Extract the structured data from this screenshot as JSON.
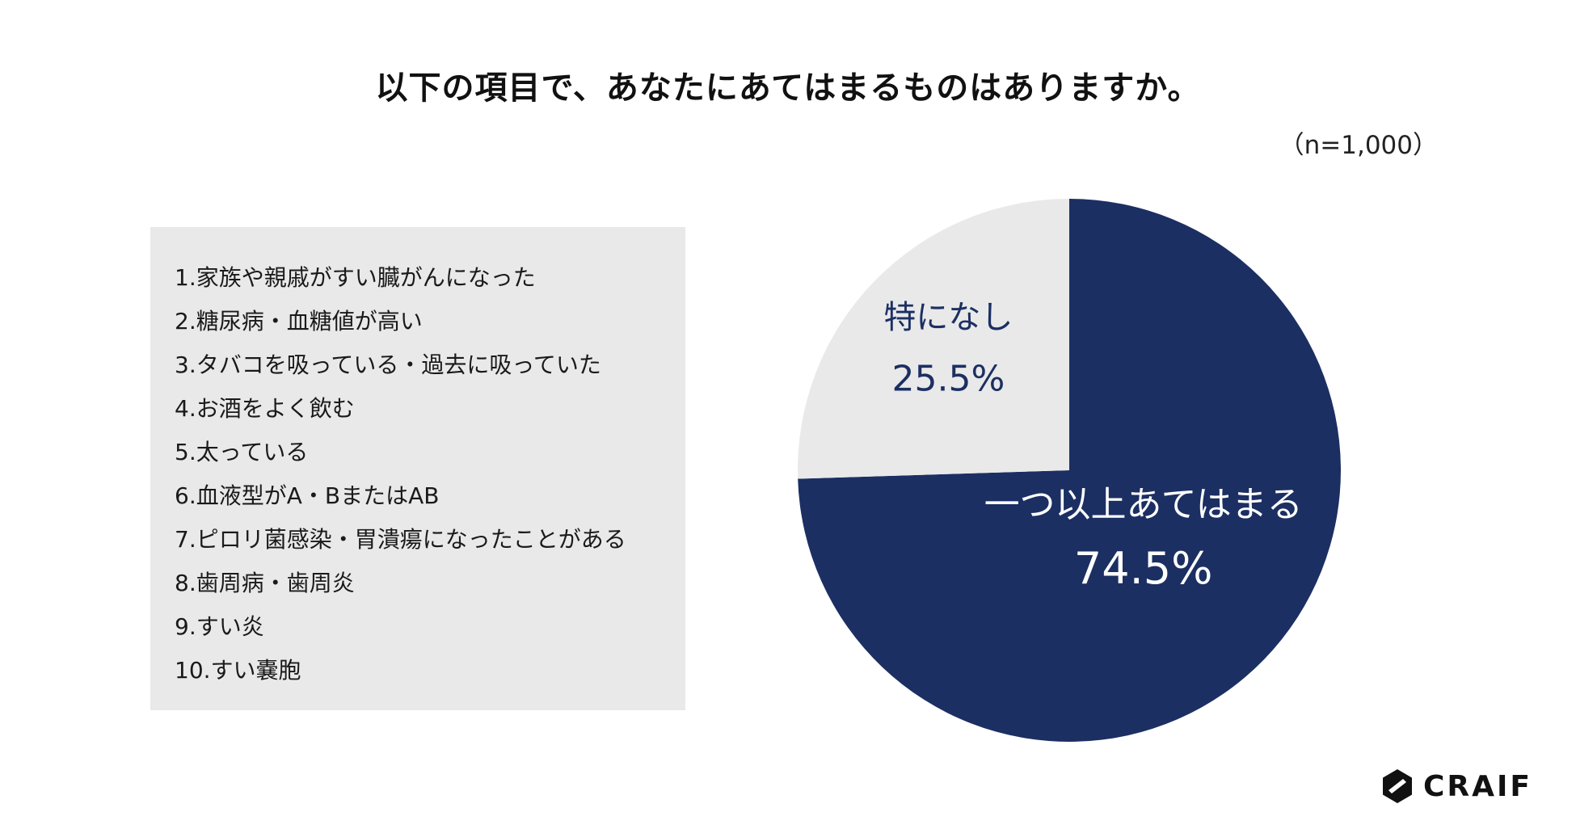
{
  "header": {
    "title": "以下の項目で、あなたにあてはまるものはありますか。",
    "sample_size": "（n=1,000）"
  },
  "items": [
    "1.家族や親戚がすい臓がんになった",
    "2.糖尿病・血糖値が高い",
    "3.タバコを吸っている・過去に吸っていた",
    "4.お酒をよく飲む",
    "5.太っている",
    "6.血液型がA・BまたはAB",
    "7.ピロリ菌感染・胃潰瘍になったことがある",
    "8.歯周病・歯周炎",
    "9.すい炎",
    "10.すい嚢胞"
  ],
  "chart_data": {
    "type": "pie",
    "unit": "%",
    "slices": [
      {
        "label": "一つ以上あてはまる",
        "value": 74.5,
        "display": "74.5%",
        "color": "#1c2f63",
        "text_color": "#ffffff"
      },
      {
        "label": "特になし",
        "value": 25.5,
        "display": "25.5%",
        "color": "#e9e9e9",
        "text_color": "#1c2f63"
      }
    ],
    "start": "12 o'clock",
    "direction": "clockwise"
  },
  "logo": {
    "text": "CRAIF",
    "icon": "craif-hexagon-logo-icon"
  }
}
